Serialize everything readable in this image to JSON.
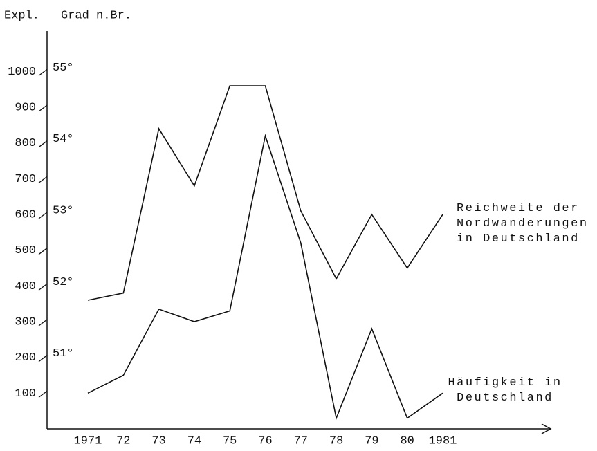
{
  "chart_data": {
    "type": "line",
    "y_label": "Expl.",
    "y2_label": "Grad n.Br.",
    "categories": [
      "1971",
      "72",
      "73",
      "74",
      "75",
      "76",
      "77",
      "78",
      "79",
      "80",
      "1981"
    ],
    "series": [
      {
        "name": "Reichweite der Nordwanderungen in Deutschland",
        "color": "#111111",
        "axis": "y2",
        "values": [
          51.8,
          51.9,
          54.2,
          53.4,
          54.8,
          54.8,
          53.05,
          52.1,
          53.0,
          52.25,
          53.0
        ]
      },
      {
        "name": "Häufigkeit in Deutschland",
        "color": "#111111",
        "values": [
          100,
          150,
          335,
          300,
          330,
          820,
          520,
          30,
          280,
          30,
          100
        ]
      }
    ],
    "ylim": [
      0,
      1100
    ],
    "yticks": [
      100,
      200,
      300,
      400,
      500,
      600,
      700,
      800,
      900,
      1000
    ],
    "y2lim": [
      50,
      55.5
    ],
    "y2ticks": [
      {
        "value": 51,
        "label": "51°"
      },
      {
        "value": 52,
        "label": "52°"
      },
      {
        "value": 53,
        "label": "53°"
      },
      {
        "value": 54,
        "label": "54°"
      },
      {
        "value": 55,
        "label": "55°"
      }
    ],
    "grid": false
  }
}
